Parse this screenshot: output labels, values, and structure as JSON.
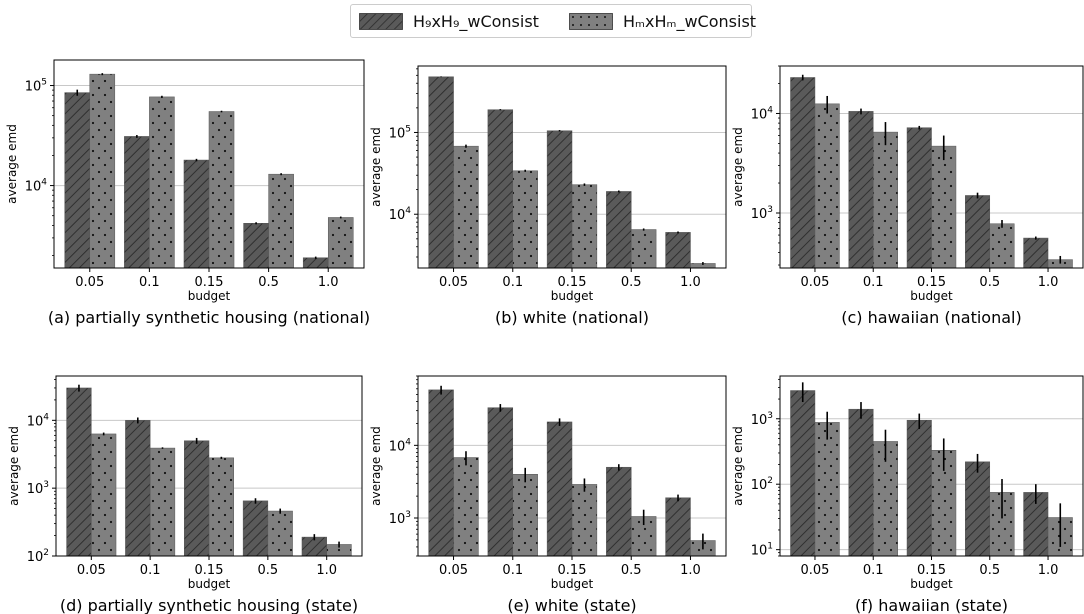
{
  "legend": {
    "series": [
      {
        "name": "H₉xH₉_wConsist",
        "pattern": "hatch"
      },
      {
        "name": "HₘxHₘ_wConsist",
        "pattern": "dots"
      }
    ]
  },
  "colors": {
    "bar_fill": "#808080",
    "bar_dark": "#5a5a5a",
    "grid": "#c8c8c8",
    "error": "#000000"
  },
  "chart_data": [
    {
      "type": "bar",
      "caption": "(a) partially synthetic housing (national)",
      "xlabel": "budget",
      "ylabel": "average emd",
      "yscale": "log",
      "ylim": [
        1500,
        180000
      ],
      "yticks": [
        {
          "value": 10000,
          "label": "10^4"
        },
        {
          "value": 100000,
          "label": "10^5"
        }
      ],
      "categories": [
        "0.05",
        "0.1",
        "0.15",
        "0.5",
        "1.0"
      ],
      "series": [
        {
          "name": "H₉xH₉_wConsist",
          "values": [
            85000,
            31000,
            18000,
            4200,
            1900
          ],
          "err": [
            6000,
            1000,
            500,
            100,
            50
          ]
        },
        {
          "name": "HₘxHₘ_wConsist",
          "values": [
            130000,
            77000,
            55000,
            13000,
            4800
          ],
          "err": [
            3000,
            2000,
            1000,
            300,
            100
          ]
        }
      ]
    },
    {
      "type": "bar",
      "caption": "(b) white (national)",
      "xlabel": "budget",
      "ylabel": "average emd",
      "yscale": "log",
      "ylim": [
        2200,
        650000
      ],
      "yticks": [
        {
          "value": 10000,
          "label": "10^4"
        },
        {
          "value": 100000,
          "label": "10^5"
        }
      ],
      "categories": [
        "0.05",
        "0.1",
        "0.15",
        "0.5",
        "1.0"
      ],
      "series": [
        {
          "name": "H₉xH₉_wConsist",
          "values": [
            480000,
            190000,
            105000,
            19000,
            6000
          ],
          "err": [
            5000,
            3000,
            2000,
            500,
            150
          ]
        },
        {
          "name": "HₘxHₘ_wConsist",
          "values": [
            68000,
            34000,
            23000,
            6500,
            2500
          ],
          "err": [
            3000,
            1000,
            800,
            200,
            100
          ]
        }
      ]
    },
    {
      "type": "bar",
      "caption": "(c) hawaiian (national)",
      "xlabel": "budget",
      "ylabel": "average emd",
      "yscale": "log",
      "ylim": [
        280,
        30000
      ],
      "yticks": [
        {
          "value": 1000,
          "label": "10^3"
        },
        {
          "value": 10000,
          "label": "10^4"
        }
      ],
      "categories": [
        "0.05",
        "0.1",
        "0.15",
        "0.5",
        "1.0"
      ],
      "series": [
        {
          "name": "H₉xH₉_wConsist",
          "values": [
            23000,
            10500,
            7200,
            1500,
            560
          ],
          "err": [
            1500,
            700,
            300,
            100,
            20
          ]
        },
        {
          "name": "HₘxHₘ_wConsist",
          "values": [
            12500,
            6500,
            4700,
            780,
            340
          ],
          "err": [
            2500,
            1700,
            1300,
            70,
            30
          ]
        }
      ]
    },
    {
      "type": "bar",
      "caption": "(d) partially synthetic housing (state)",
      "xlabel": "budget",
      "ylabel": "average emd",
      "yscale": "log",
      "ylim": [
        100,
        45000
      ],
      "yticks": [
        {
          "value": 100,
          "label": "10^2"
        },
        {
          "value": 1000,
          "label": "10^3"
        },
        {
          "value": 10000,
          "label": "10^4"
        }
      ],
      "categories": [
        "0.05",
        "0.1",
        "0.15",
        "0.5",
        "1.0"
      ],
      "series": [
        {
          "name": "H₉xH₉_wConsist",
          "values": [
            30000,
            10000,
            5000,
            650,
            190
          ],
          "err": [
            3500,
            1000,
            500,
            60,
            20
          ]
        },
        {
          "name": "HₘxHₘ_wConsist",
          "values": [
            6300,
            3900,
            2800,
            460,
            148
          ],
          "err": [
            300,
            100,
            100,
            40,
            15
          ]
        }
      ]
    },
    {
      "type": "bar",
      "caption": "(e) white (state)",
      "xlabel": "budget",
      "ylabel": "average emd",
      "yscale": "log",
      "ylim": [
        300,
        90000
      ],
      "yticks": [
        {
          "value": 1000,
          "label": "10^3"
        },
        {
          "value": 10000,
          "label": "10^4"
        }
      ],
      "categories": [
        "0.05",
        "0.1",
        "0.15",
        "0.5",
        "1.0"
      ],
      "series": [
        {
          "name": "H₉xH₉_wConsist",
          "values": [
            58000,
            33000,
            21000,
            5000,
            1900
          ],
          "err": [
            8000,
            4000,
            2500,
            500,
            200
          ]
        },
        {
          "name": "HₘxHₘ_wConsist",
          "values": [
            6800,
            4000,
            2900,
            1050,
            490
          ],
          "err": [
            1500,
            900,
            600,
            250,
            120
          ]
        }
      ]
    },
    {
      "type": "bar",
      "caption": "(f) hawaiian (state)",
      "xlabel": "budget",
      "ylabel": "average emd",
      "yscale": "log",
      "ylim": [
        8,
        4500
      ],
      "yticks": [
        {
          "value": 10,
          "label": "10^1"
        },
        {
          "value": 100,
          "label": "10^2"
        },
        {
          "value": 1000,
          "label": "10^3"
        }
      ],
      "categories": [
        "0.05",
        "0.1",
        "0.15",
        "0.5",
        "1.0"
      ],
      "series": [
        {
          "name": "H₉xH₉_wConsist",
          "values": [
            2700,
            1400,
            950,
            220,
            75
          ],
          "err": [
            900,
            400,
            250,
            70,
            25
          ]
        },
        {
          "name": "HₘxHₘ_wConsist",
          "values": [
            880,
            450,
            330,
            75,
            31
          ],
          "err": [
            400,
            230,
            170,
            45,
            20
          ]
        }
      ]
    }
  ]
}
